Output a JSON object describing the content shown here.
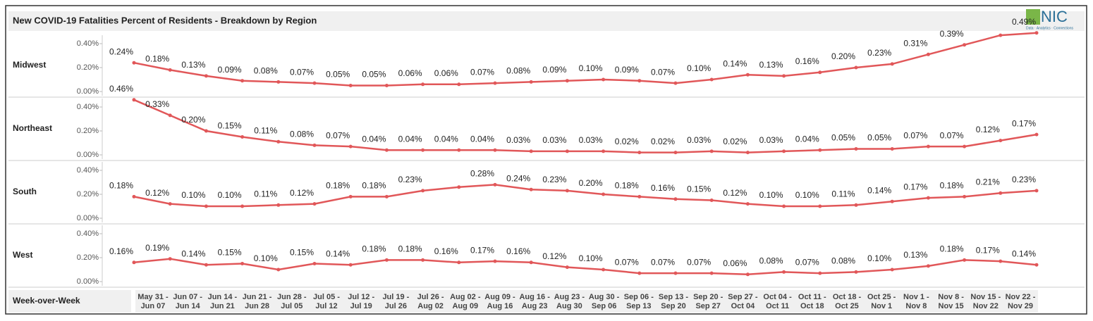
{
  "logo": {
    "text": "NIC",
    "tagline": "Data · Analytics · Connections"
  },
  "chart_data": {
    "type": "line",
    "title": "New COVID-19 Fatalities Percent of Residents - Breakdown by Region",
    "x_label": "Week-over-Week",
    "categories": [
      "May 31 - Jun 07",
      "Jun 07 - Jun 14",
      "Jun 14 - Jun 21",
      "Jun 21 - Jun 28",
      "Jun 28 - Jul 05",
      "Jul 05 - Jul 12",
      "Jul 12 - Jul 19",
      "Jul 19 - Jul 26",
      "Jul 26 - Aug 02",
      "Aug 02 - Aug 09",
      "Aug 09 - Aug 16",
      "Aug 16 - Aug 23",
      "Aug 23 - Aug 30",
      "Aug 30 - Sep 06",
      "Sep 06 - Sep 13",
      "Sep 13 - Sep 20",
      "Sep 20 - Sep 27",
      "Sep 27 - Oct 04",
      "Oct 04 - Oct 11",
      "Oct 11 - Oct 18",
      "Oct 18 - Oct 25",
      "Oct 25 - Nov 1",
      "Nov 1 - Nov 8",
      "Nov 8 - Nov 15",
      "Nov 15 - Nov 22",
      "Nov 22 - Nov 29"
    ],
    "ylim": [
      0,
      0.5
    ],
    "yticks": [
      {
        "value": 0,
        "label": "0.00%"
      },
      {
        "value": 0.2,
        "label": "0.20%"
      },
      {
        "value": 0.4,
        "label": "0.40%"
      }
    ],
    "series": [
      {
        "name": "Midwest",
        "color": "#e15759",
        "values": [
          0.24,
          0.18,
          0.13,
          0.09,
          0.08,
          0.07,
          0.05,
          0.05,
          0.06,
          0.06,
          0.07,
          0.08,
          0.09,
          0.1,
          0.09,
          0.07,
          0.1,
          0.14,
          0.13,
          0.16,
          0.2,
          0.23,
          0.31,
          0.39,
          0.47,
          0.49
        ],
        "value_labels": [
          "0.24%",
          "0.18%",
          "0.13%",
          "0.09%",
          "0.08%",
          "0.07%",
          "0.05%",
          "0.05%",
          "0.06%",
          "0.06%",
          "0.07%",
          "0.08%",
          "0.09%",
          "0.10%",
          "0.09%",
          "0.07%",
          "0.10%",
          "0.14%",
          "0.13%",
          "0.16%",
          "0.20%",
          "0.23%",
          "0.31%",
          "0.39%",
          null,
          "0.49%"
        ]
      },
      {
        "name": "Northeast",
        "color": "#e15759",
        "values": [
          0.46,
          0.33,
          0.2,
          0.15,
          0.11,
          0.08,
          0.07,
          0.04,
          0.04,
          0.04,
          0.04,
          0.03,
          0.03,
          0.03,
          0.02,
          0.02,
          0.03,
          0.02,
          0.03,
          0.04,
          0.05,
          0.05,
          0.07,
          0.07,
          0.12,
          0.17
        ],
        "value_labels": [
          "0.46%",
          "0.33%",
          "0.20%",
          "0.15%",
          "0.11%",
          "0.08%",
          "0.07%",
          "0.04%",
          "0.04%",
          "0.04%",
          "0.04%",
          "0.03%",
          "0.03%",
          "0.03%",
          "0.02%",
          "0.02%",
          "0.03%",
          "0.02%",
          "0.03%",
          "0.04%",
          "0.05%",
          "0.05%",
          "0.07%",
          "0.07%",
          "0.12%",
          "0.17%"
        ]
      },
      {
        "name": "South",
        "color": "#e15759",
        "values": [
          0.18,
          0.12,
          0.1,
          0.1,
          0.11,
          0.12,
          0.18,
          0.18,
          0.23,
          0.26,
          0.28,
          0.24,
          0.23,
          0.2,
          0.18,
          0.16,
          0.15,
          0.12,
          0.1,
          0.1,
          0.11,
          0.14,
          0.17,
          0.18,
          0.21,
          0.23
        ],
        "value_labels": [
          "0.18%",
          "0.12%",
          "0.10%",
          "0.10%",
          "0.11%",
          "0.12%",
          "0.18%",
          "0.18%",
          "0.23%",
          null,
          "0.28%",
          "0.24%",
          "0.23%",
          "0.20%",
          "0.18%",
          "0.16%",
          "0.15%",
          "0.12%",
          "0.10%",
          "0.10%",
          "0.11%",
          "0.14%",
          "0.17%",
          "0.18%",
          "0.21%",
          "0.23%"
        ]
      },
      {
        "name": "West",
        "color": "#e15759",
        "values": [
          0.16,
          0.19,
          0.14,
          0.15,
          0.1,
          0.15,
          0.14,
          0.18,
          0.18,
          0.16,
          0.17,
          0.16,
          0.12,
          0.1,
          0.07,
          0.07,
          0.07,
          0.06,
          0.08,
          0.07,
          0.08,
          0.1,
          0.13,
          0.18,
          0.17,
          0.14
        ],
        "value_labels": [
          "0.16%",
          "0.19%",
          "0.14%",
          "0.15%",
          "0.10%",
          "0.15%",
          "0.14%",
          "0.18%",
          "0.18%",
          "0.16%",
          "0.17%",
          "0.16%",
          "0.12%",
          "0.10%",
          "0.07%",
          "0.07%",
          "0.07%",
          "0.06%",
          "0.08%",
          "0.07%",
          "0.08%",
          "0.10%",
          "0.13%",
          "0.18%",
          "0.17%",
          "0.14%"
        ]
      }
    ]
  }
}
